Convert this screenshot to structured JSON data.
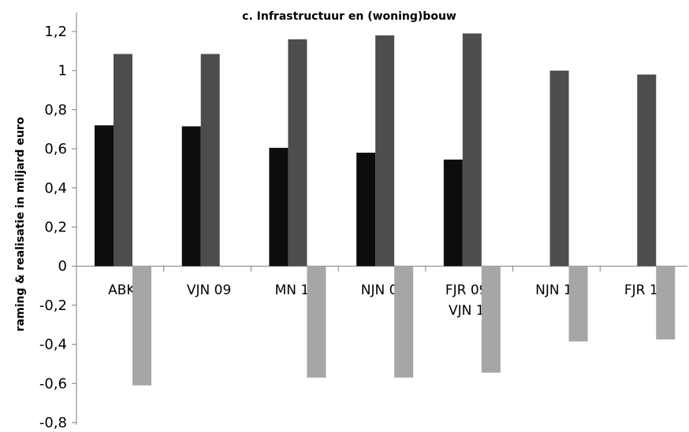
{
  "chart_data": {
    "type": "bar",
    "title": "c. Infrastructuur en (woning)bouw",
    "ylabel": "raming & realisatie in miljard euro",
    "xlabel": "",
    "ylim": [
      -0.8,
      1.2
    ],
    "y_ticks": [
      "-0,8",
      "-0,6",
      "-0,4",
      "-0,2",
      "0",
      "0,2",
      "0,4",
      "0,6",
      "0,8",
      "1",
      "1,2"
    ],
    "grid": false,
    "legend": "none",
    "categories": [
      [
        "ABK"
      ],
      [
        "VJN 09"
      ],
      [
        "MN 10"
      ],
      [
        "NJN 09"
      ],
      [
        "FJR 09 /",
        "VJN 10"
      ],
      [
        "NJN 10"
      ],
      [
        "FJR 10"
      ]
    ],
    "series": [
      {
        "color": "#0d0d0d",
        "values": [
          0.72,
          0.715,
          0.605,
          0.58,
          0.545,
          null,
          null
        ]
      },
      {
        "color": "#4d4d4d",
        "values": [
          1.085,
          1.085,
          1.16,
          1.18,
          1.19,
          1.0,
          0.98
        ]
      },
      {
        "color": "#a6a6a6",
        "values": [
          -0.61,
          null,
          -0.57,
          -0.57,
          -0.545,
          -0.385,
          -0.375
        ]
      }
    ]
  }
}
